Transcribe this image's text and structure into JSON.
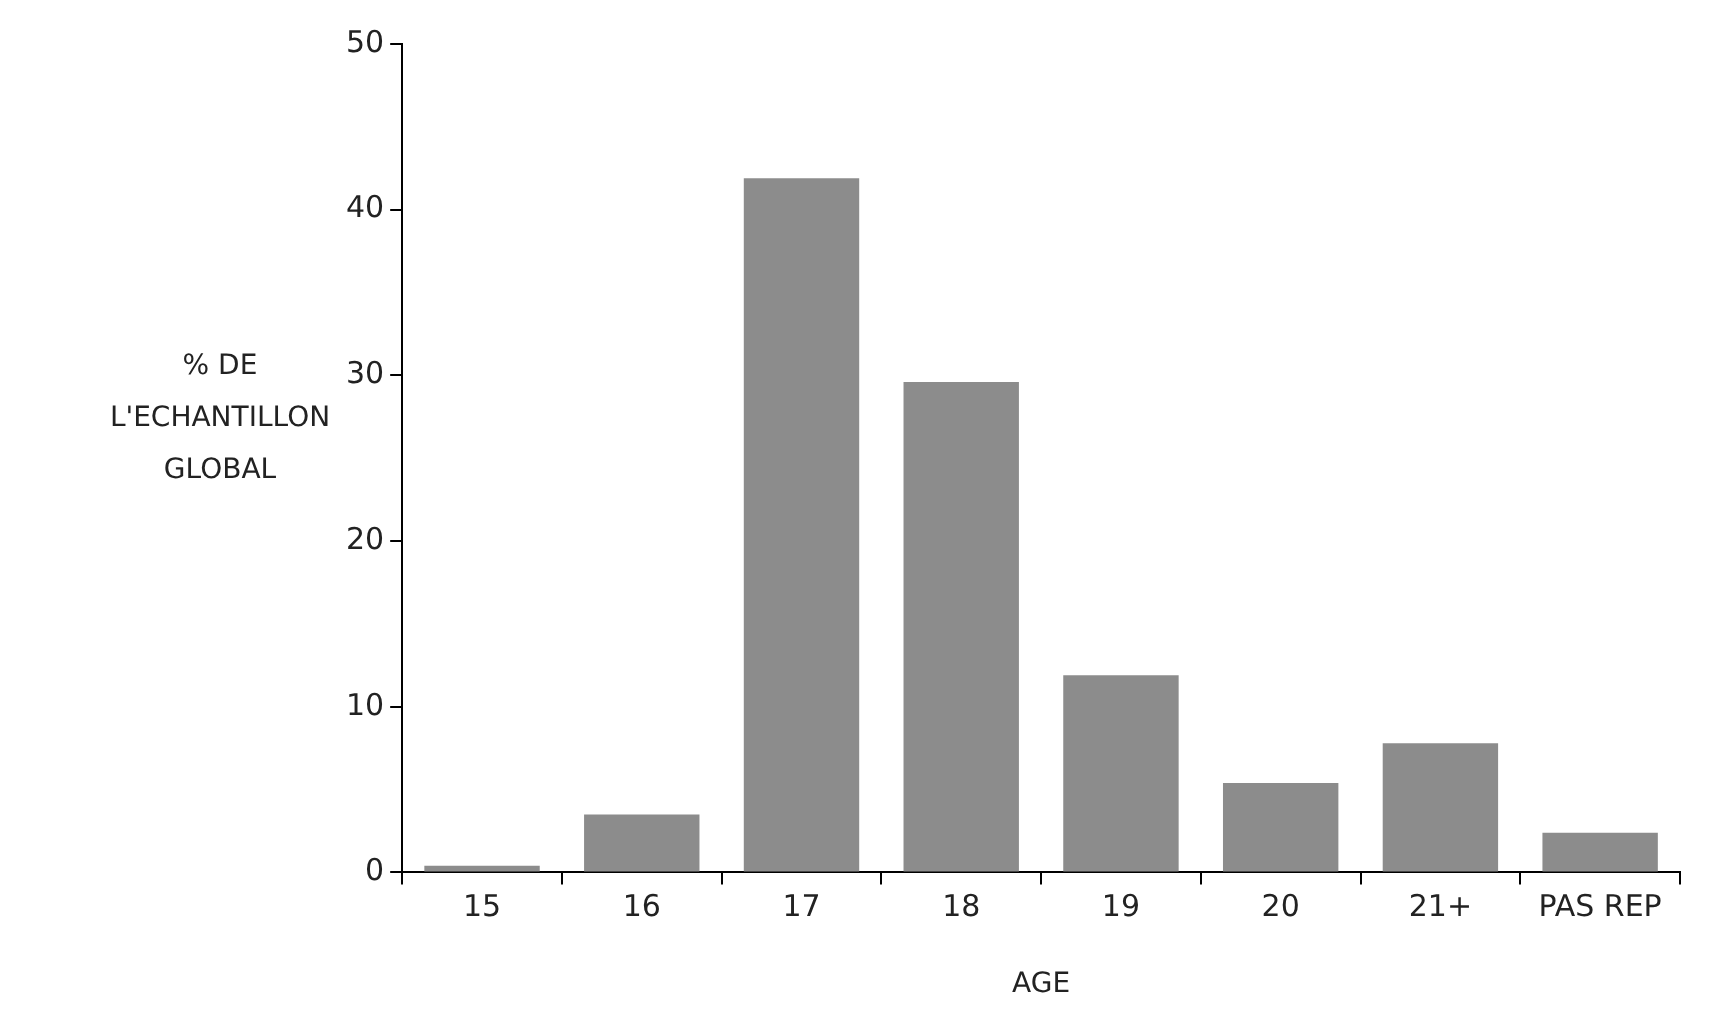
{
  "chart_data": {
    "type": "bar",
    "xlabel": "AGE",
    "ylabel": "% DE L'ECHANTILLON GLOBAL",
    "categories": [
      "15",
      "16",
      "17",
      "18",
      "19",
      "20",
      "21+",
      "PAS REP"
    ],
    "values": [
      0.4,
      3.5,
      41.9,
      29.6,
      11.9,
      5.4,
      7.8,
      2.4
    ],
    "color": "#8c8c8c",
    "ylim": [
      0,
      50
    ],
    "yticks": [
      0,
      10,
      20,
      30,
      40,
      50
    ],
    "grid": false,
    "legend": false
  }
}
